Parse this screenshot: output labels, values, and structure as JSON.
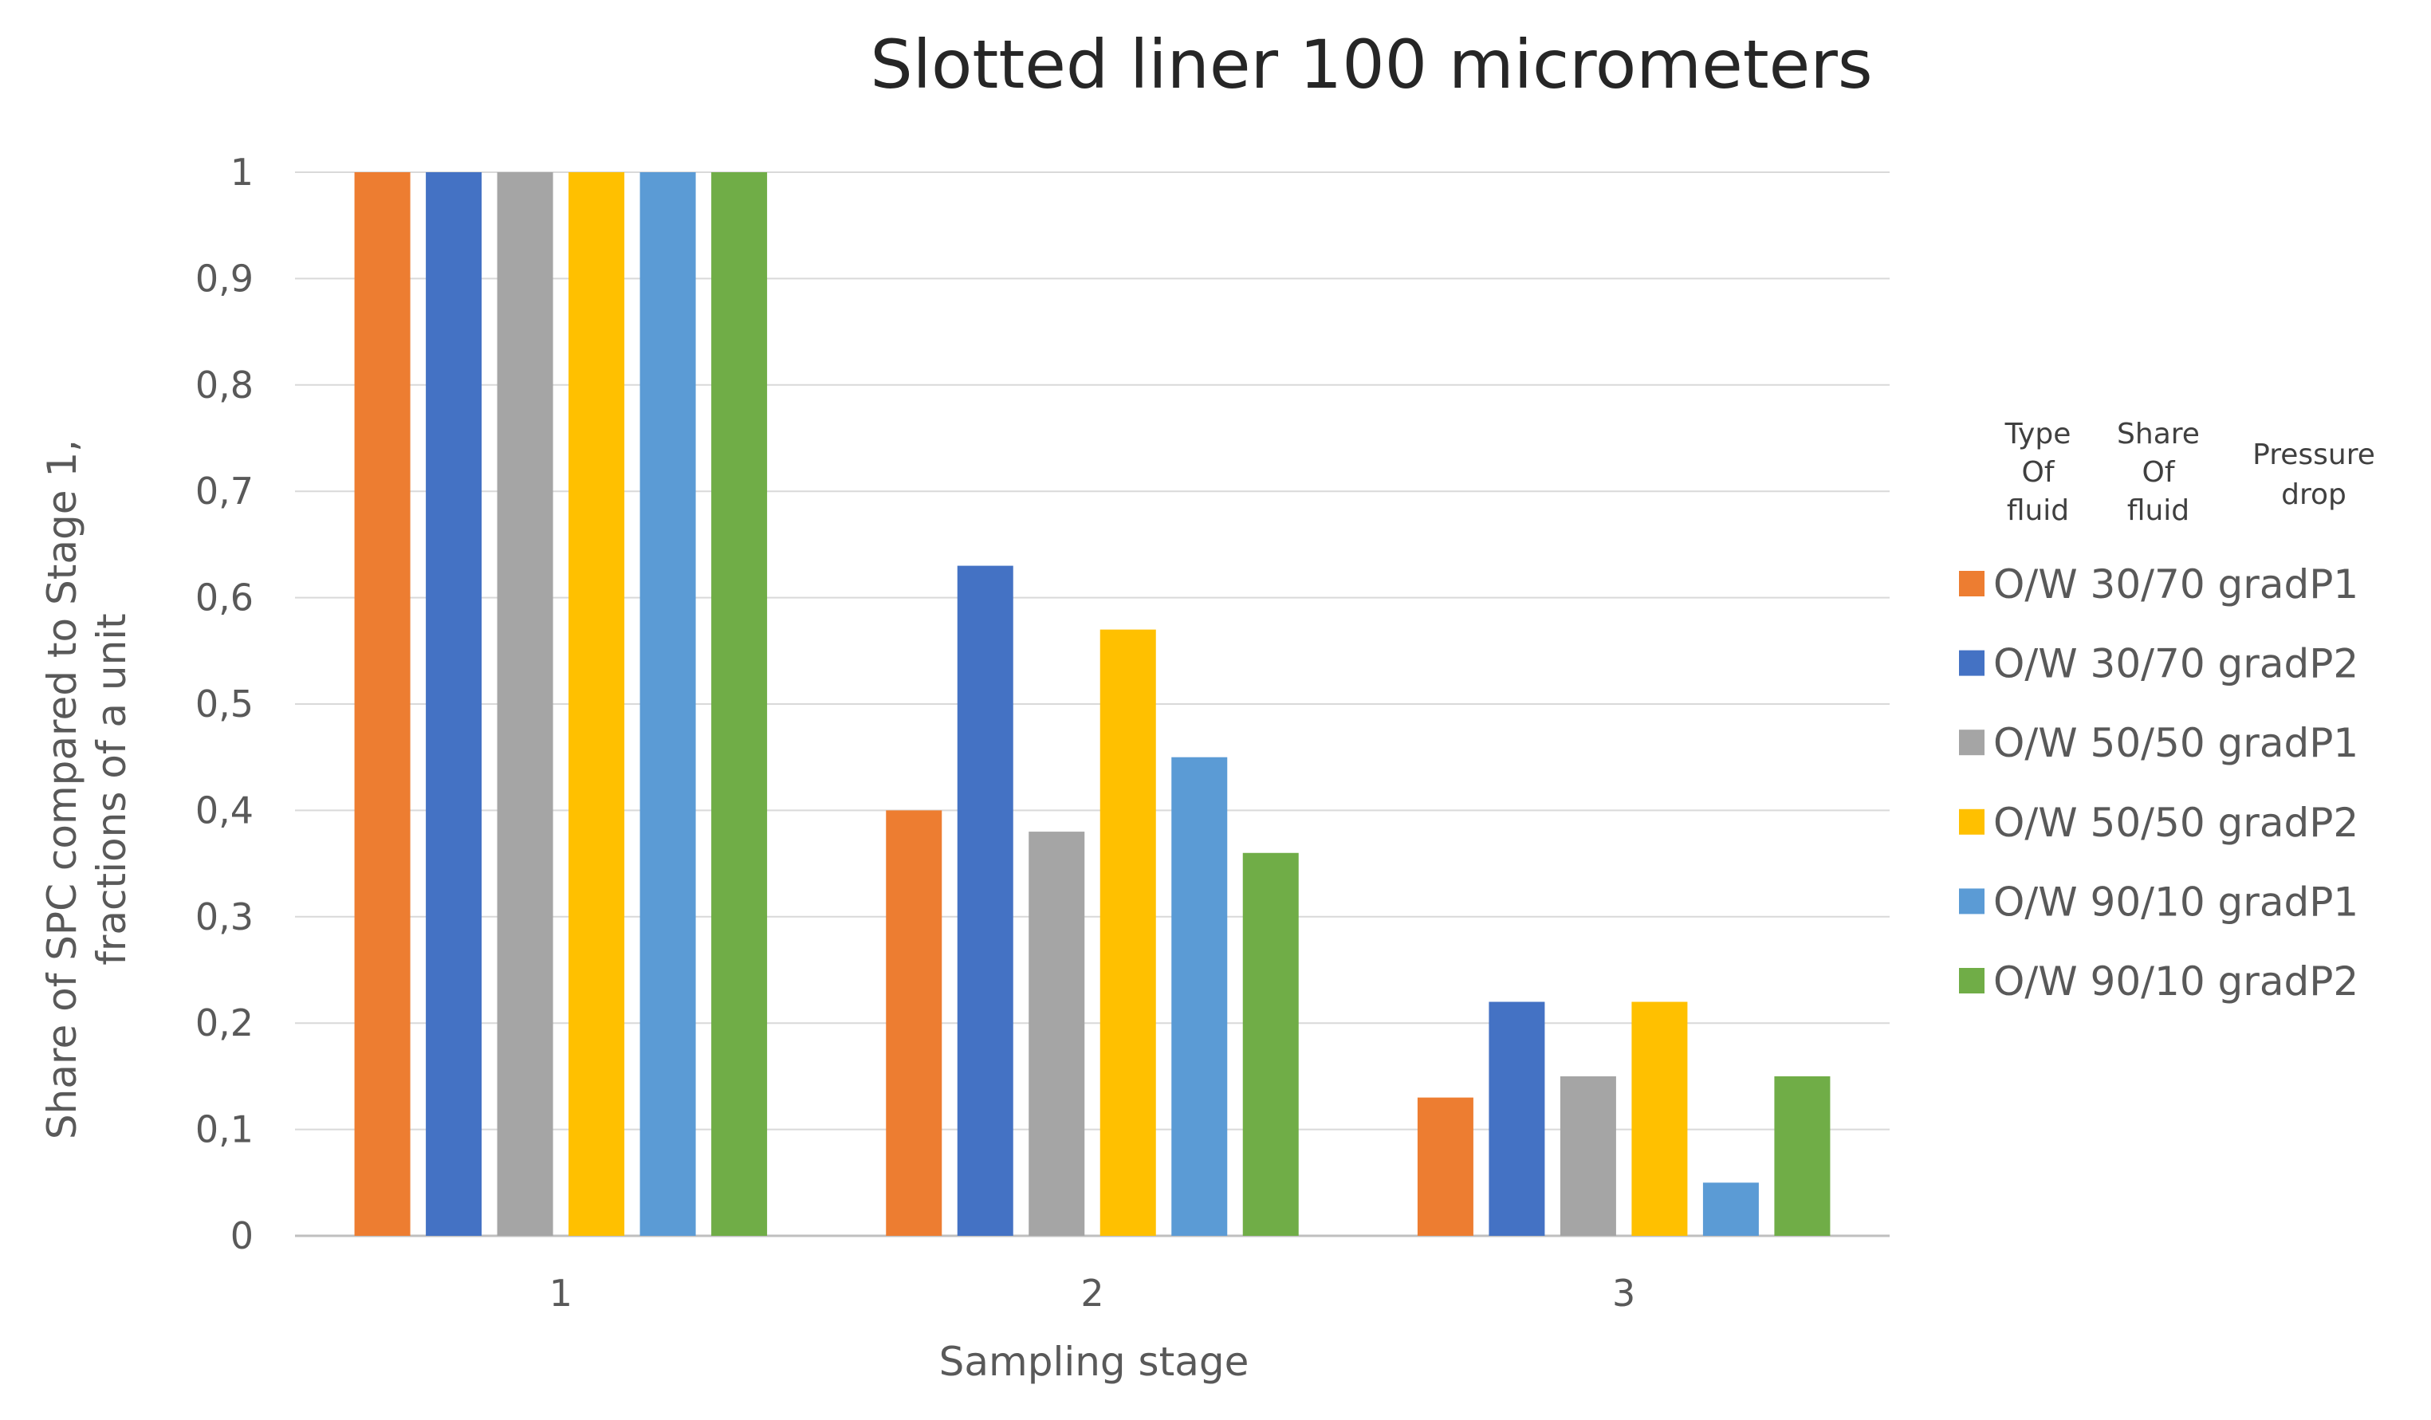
{
  "chart_data": {
    "type": "bar",
    "title": "Slotted liner 100 micrometers",
    "xlabel": "Sampling stage",
    "ylabel": [
      "Share of SPC compared to Stage 1,",
      "fractions of a unit"
    ],
    "categories": [
      "1",
      "2",
      "3"
    ],
    "ylim": [
      0,
      1
    ],
    "yticks": [
      "0",
      "0,1",
      "0,2",
      "0,3",
      "0,4",
      "0,5",
      "0,6",
      "0,7",
      "0,8",
      "0,9",
      "1"
    ],
    "grid": true,
    "legend_position": "right",
    "legend_headers": [
      [
        "Type",
        "Of",
        "fluid"
      ],
      [
        "Share",
        "Of",
        "fluid"
      ],
      [
        "Pressure",
        "drop"
      ]
    ],
    "series": [
      {
        "name": "O/W 30/70 gradP1",
        "color": "#ED7D31",
        "values": [
          1,
          0.4,
          0.13
        ]
      },
      {
        "name": "O/W 30/70 gradP2",
        "color": "#4472C4",
        "values": [
          1,
          0.63,
          0.22
        ]
      },
      {
        "name": "O/W 50/50 gradP1",
        "color": "#A5A5A5",
        "values": [
          1,
          0.38,
          0.15
        ]
      },
      {
        "name": "O/W 50/50 gradP2",
        "color": "#FFC000",
        "values": [
          1,
          0.57,
          0.22
        ]
      },
      {
        "name": "O/W 90/10 gradP1",
        "color": "#5B9BD5",
        "values": [
          1,
          0.45,
          0.05
        ]
      },
      {
        "name": "O/W 90/10 gradP2",
        "color": "#70AD47",
        "values": [
          1,
          0.36,
          0.15
        ]
      }
    ]
  }
}
